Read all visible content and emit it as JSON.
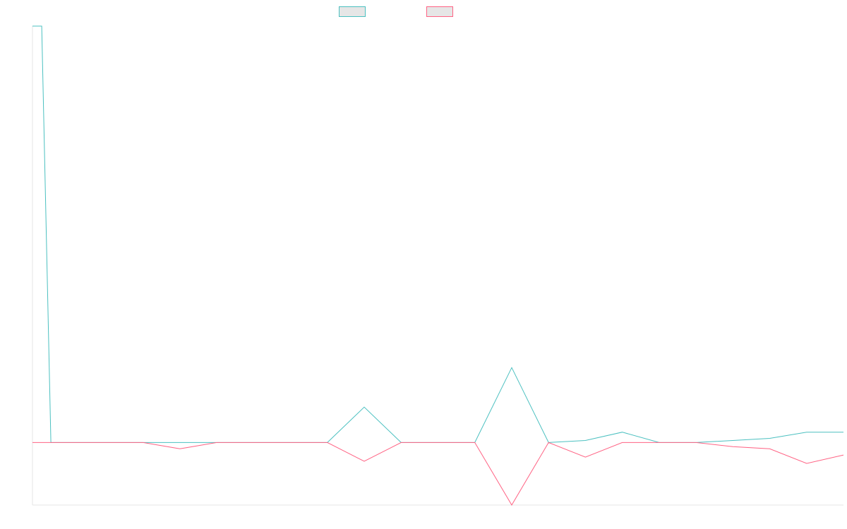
{
  "chart_data": {
    "type": "line",
    "title": "",
    "xlabel": "",
    "ylabel": "",
    "grid": false,
    "legend_position": "top-center",
    "x": [
      0,
      0.25,
      0.5,
      1,
      2,
      3,
      4,
      5,
      6,
      7,
      8,
      9,
      10,
      11,
      12,
      13,
      14,
      15,
      16,
      17,
      18,
      19,
      20,
      21,
      22
    ],
    "ylim": [
      -30,
      200
    ],
    "series": [
      {
        "color": "#4bc0c0",
        "values": [
          200,
          200,
          0,
          0,
          0,
          0,
          0,
          0,
          0,
          0,
          0,
          17,
          0,
          0,
          0,
          36,
          0,
          1,
          5,
          0,
          0,
          1,
          2,
          5,
          5
        ]
      },
      {
        "color": "#ff6384",
        "values": [
          0,
          0,
          0,
          0,
          0,
          0,
          -3,
          0,
          0,
          0,
          0,
          -9,
          0,
          0,
          0,
          -30,
          0,
          -7,
          0,
          0,
          0,
          -2,
          -3,
          -10,
          -6
        ]
      }
    ]
  }
}
